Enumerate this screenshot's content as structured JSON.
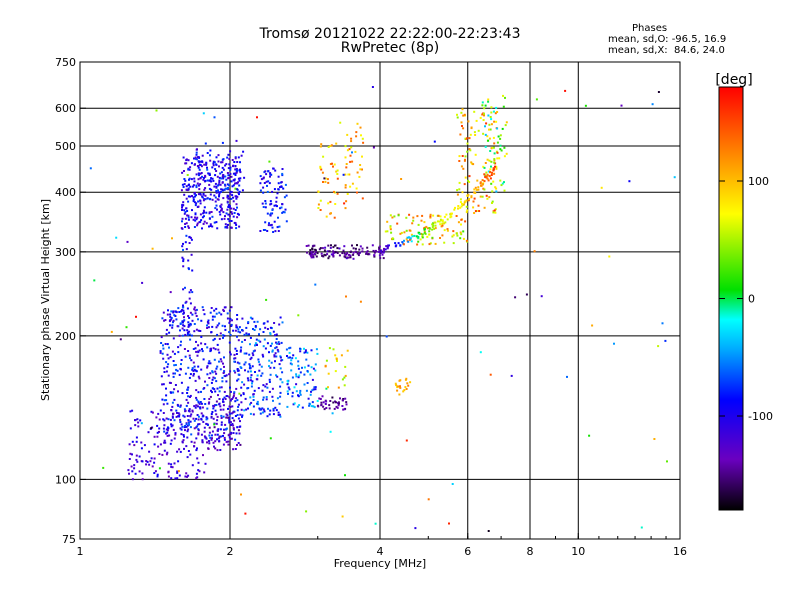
{
  "header": {
    "title": "Tromsø 20121022 22:22:00-22:23:43",
    "subtitle": "RwPretec (8p)",
    "phases_title": "Phases",
    "phases_o": "mean, sd,O: -96.5, 16.9",
    "phases_x": "mean, sd,X:  84.6, 24.0"
  },
  "colorbar": {
    "label": "[deg]",
    "ticks": [
      {
        "value": 100,
        "label": "100"
      },
      {
        "value": 0,
        "label": "0"
      },
      {
        "value": -100,
        "label": "-100"
      }
    ],
    "range": [
      -180,
      180
    ]
  },
  "chart_data": {
    "type": "scatter",
    "xlabel": "Frequency [MHz]",
    "ylabel": "Stationary phase Virtual Height [km]",
    "xscale": "log",
    "yscale": "log",
    "xlim": [
      1,
      16
    ],
    "ylim": [
      75,
      750
    ],
    "x_ticks": [
      {
        "value": 1,
        "label": "1"
      },
      {
        "value": 2,
        "label": "2"
      },
      {
        "value": 4,
        "label": "4"
      },
      {
        "value": 6,
        "label": "6"
      },
      {
        "value": 8,
        "label": "8"
      },
      {
        "value": 10,
        "label": "10"
      },
      {
        "value": 16,
        "label": "16"
      }
    ],
    "x_gridlines": [
      2,
      4,
      6,
      8,
      10
    ],
    "y_ticks": [
      {
        "value": 75,
        "label": "75"
      },
      {
        "value": 100,
        "label": "100"
      },
      {
        "value": 200,
        "label": "200"
      },
      {
        "value": 300,
        "label": "300"
      },
      {
        "value": 400,
        "label": "400"
      },
      {
        "value": 500,
        "label": "500"
      },
      {
        "value": 600,
        "label": "600"
      },
      {
        "value": 750,
        "label": "750"
      }
    ],
    "y_gridlines": [
      100,
      200,
      300,
      400,
      500,
      600
    ],
    "grid": true,
    "color_variable": "phase [deg]",
    "clusters": [
      {
        "f": [
          1.6,
          2.1
        ],
        "h": [
          335,
          480
        ],
        "phase": [
          -130,
          -70
        ],
        "n": 380
      },
      {
        "f": [
          1.7,
          2.15
        ],
        "h": [
          400,
          520
        ],
        "phase": [
          -130,
          -60
        ],
        "n": 40
      },
      {
        "f": [
          2.3,
          2.6
        ],
        "h": [
          330,
          450
        ],
        "phase": [
          -120,
          -60
        ],
        "n": 90
      },
      {
        "f": [
          1.6,
          1.68
        ],
        "h": [
          200,
          330
        ],
        "phase": [
          -120,
          -60
        ],
        "n": 45
      },
      {
        "f": [
          1.25,
          1.8
        ],
        "h": [
          100,
          140
        ],
        "phase": [
          -140,
          -90
        ],
        "n": 180
      },
      {
        "f": [
          1.45,
          2.1
        ],
        "h": [
          120,
          230
        ],
        "phase": [
          -130,
          -60
        ],
        "n": 520
      },
      {
        "f": [
          1.8,
          2.1
        ],
        "h": [
          115,
          150
        ],
        "phase": [
          -150,
          -100
        ],
        "n": 70
      },
      {
        "f": [
          2.1,
          2.55
        ],
        "h": [
          135,
          220
        ],
        "phase": [
          -120,
          -40
        ],
        "n": 210
      },
      {
        "f": [
          2.6,
          3.0
        ],
        "h": [
          140,
          190
        ],
        "phase": [
          -110,
          -20
        ],
        "n": 90
      },
      {
        "f": [
          3.0,
          3.45
        ],
        "h": [
          140,
          150
        ],
        "phase": [
          -165,
          -130
        ],
        "n": 40
      },
      {
        "f": [
          3.1,
          3.45
        ],
        "h": [
          155,
          190
        ],
        "phase": [
          40,
          120
        ],
        "n": 20
      },
      {
        "f": [
          4.3,
          4.6
        ],
        "h": [
          150,
          165
        ],
        "phase": [
          80,
          130
        ],
        "n": 20
      },
      {
        "f": [
          3.0,
          3.3
        ],
        "h": [
          350,
          520
        ],
        "phase": [
          60,
          150
        ],
        "n": 40
      },
      {
        "f": [
          3.4,
          3.7
        ],
        "h": [
          370,
          560
        ],
        "phase": [
          60,
          150
        ],
        "n": 40
      },
      {
        "f": [
          2.85,
          4.1
        ],
        "h": [
          290,
          310
        ],
        "phase": [
          -170,
          -120
        ],
        "n": 90
      },
      {
        "f": [
          4.1,
          6.0
        ],
        "h": [
          310,
          360
        ],
        "phase": [
          20,
          150
        ],
        "n": 100
      },
      {
        "f": [
          5.7,
          6.9
        ],
        "h": [
          360,
          600
        ],
        "phase": [
          40,
          160
        ],
        "n": 120
      },
      {
        "f": [
          6.4,
          7.2
        ],
        "h": [
          400,
          640
        ],
        "phase": [
          -40,
          100
        ],
        "n": 60
      }
    ],
    "trace": {
      "f": [
        2.85,
        3.0,
        3.3,
        3.6,
        3.9,
        4.1,
        4.3,
        4.5,
        4.7,
        4.9,
        5.1,
        5.3,
        5.5,
        5.7,
        5.9,
        6.1,
        6.3,
        6.5,
        6.7,
        6.85
      ],
      "h": [
        295,
        297,
        298,
        299,
        302,
        306,
        310,
        316,
        322,
        330,
        338,
        347,
        357,
        369,
        382,
        396,
        410,
        425,
        440,
        460
      ],
      "phase": [
        -150,
        -150,
        -150,
        -150,
        -140,
        -120,
        -90,
        -50,
        -10,
        20,
        40,
        60,
        70,
        80,
        90,
        100,
        110,
        130,
        150,
        160
      ]
    },
    "scatter_noise": {
      "f": [
        1,
        16
      ],
      "h": [
        75,
        700
      ],
      "n": 90
    }
  }
}
